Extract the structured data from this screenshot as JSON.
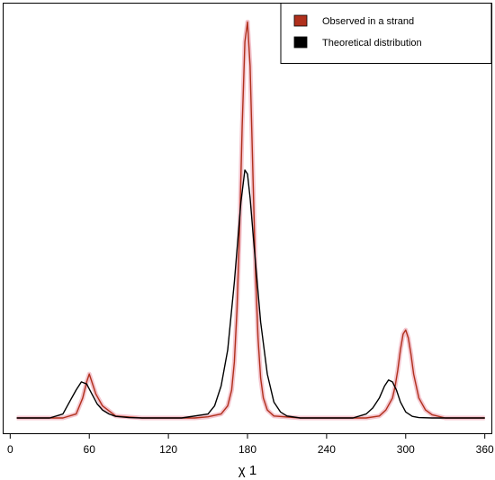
{
  "chart_data": {
    "type": "line",
    "title": "",
    "xlabel": "χ 1",
    "ylabel": "",
    "xlim": [
      -5,
      365
    ],
    "ylim": [
      0,
      1.0
    ],
    "xticks": [
      0,
      60,
      120,
      180,
      240,
      300,
      360
    ],
    "grid": false,
    "legend_position": "top-right",
    "series": [
      {
        "name": "Observed in a strand",
        "color": "#b0301c",
        "halo_color": "#f4c6cf",
        "x": [
          5,
          40,
          50,
          55,
          58,
          60,
          62,
          65,
          70,
          80,
          100,
          140,
          150,
          160,
          165,
          168,
          170,
          172,
          174,
          176,
          178,
          180,
          182,
          184,
          186,
          188,
          190,
          192,
          195,
          200,
          220,
          260,
          270,
          280,
          285,
          290,
          292,
          294,
          296,
          298,
          300,
          302,
          304,
          306,
          310,
          315,
          320,
          330,
          360
        ],
        "y": [
          0,
          0,
          0.01,
          0.05,
          0.09,
          0.11,
          0.09,
          0.06,
          0.03,
          0.005,
          0,
          0,
          0.003,
          0.01,
          0.03,
          0.07,
          0.14,
          0.27,
          0.47,
          0.73,
          0.94,
          0.99,
          0.88,
          0.62,
          0.37,
          0.2,
          0.1,
          0.05,
          0.02,
          0.005,
          0,
          0,
          0,
          0.005,
          0.02,
          0.05,
          0.08,
          0.12,
          0.17,
          0.21,
          0.22,
          0.2,
          0.16,
          0.11,
          0.05,
          0.02,
          0.008,
          0,
          0
        ]
      },
      {
        "name": "Theoretical distribution",
        "color": "#000000",
        "x": [
          5,
          30,
          40,
          45,
          50,
          54,
          58,
          62,
          66,
          70,
          75,
          80,
          90,
          100,
          130,
          150,
          155,
          160,
          165,
          170,
          175,
          178,
          180,
          182,
          185,
          190,
          195,
          200,
          205,
          210,
          220,
          240,
          260,
          270,
          275,
          280,
          284,
          287,
          290,
          293,
          296,
          300,
          305,
          310,
          320,
          360
        ],
        "y": [
          0,
          0,
          0.01,
          0.04,
          0.07,
          0.09,
          0.085,
          0.06,
          0.035,
          0.02,
          0.01,
          0.004,
          0.001,
          0,
          0,
          0.01,
          0.03,
          0.08,
          0.17,
          0.34,
          0.54,
          0.62,
          0.61,
          0.55,
          0.43,
          0.24,
          0.11,
          0.04,
          0.015,
          0.005,
          0,
          0,
          0,
          0.01,
          0.025,
          0.05,
          0.08,
          0.095,
          0.09,
          0.07,
          0.04,
          0.015,
          0.004,
          0.001,
          0,
          0
        ]
      }
    ]
  }
}
